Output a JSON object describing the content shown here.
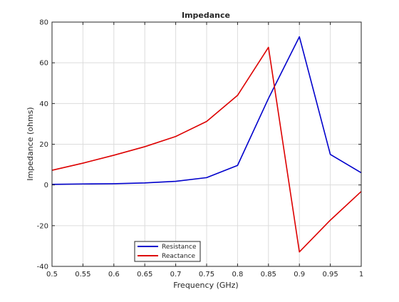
{
  "chart_data": {
    "type": "line",
    "title": "Impedance",
    "xlabel": "Frequency (GHz)",
    "ylabel": "Impedance (ohms)",
    "xlim": [
      0.5,
      1.0
    ],
    "ylim": [
      -40,
      80
    ],
    "xticks": [
      "0.5",
      "0.55",
      "0.6",
      "0.65",
      "0.7",
      "0.75",
      "0.8",
      "0.85",
      "0.9",
      "0.95",
      "1"
    ],
    "yticks": [
      "-40",
      "-20",
      "0",
      "20",
      "40",
      "60",
      "80"
    ],
    "grid": true,
    "legend_position": "bottom-left",
    "x": [
      0.5,
      0.55,
      0.6,
      0.65,
      0.7,
      0.75,
      0.8,
      0.85,
      0.9,
      0.95,
      1.0
    ],
    "series": [
      {
        "name": "Resistance",
        "color": "#0000cc",
        "values": [
          0.3,
          0.5,
          0.6,
          1.0,
          1.8,
          3.6,
          9.6,
          42.5,
          72.8,
          15.0,
          6.0
        ]
      },
      {
        "name": "Reactance",
        "color": "#dd0000",
        "values": [
          7.2,
          10.7,
          14.6,
          18.8,
          23.8,
          31.2,
          44.0,
          67.6,
          -32.9,
          -17.3,
          -3.2
        ]
      }
    ]
  }
}
